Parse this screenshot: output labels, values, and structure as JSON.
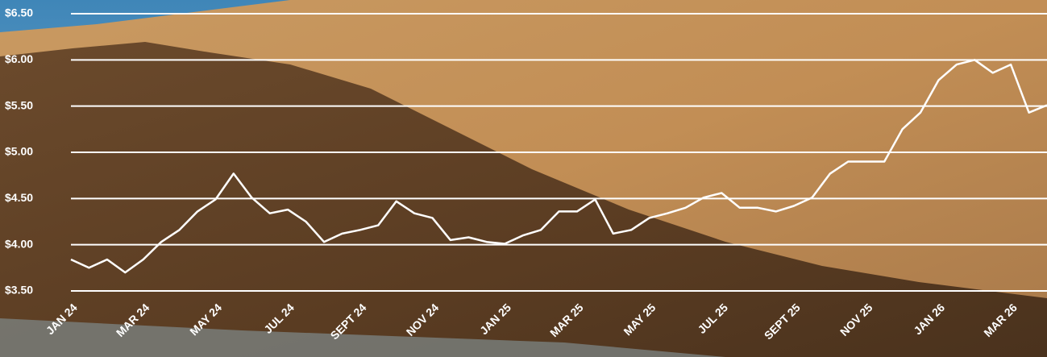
{
  "chart_data": {
    "type": "line",
    "categories": [
      "JAN 24",
      null,
      null,
      null,
      "MAR 24",
      null,
      null,
      null,
      "MAY 24",
      null,
      null,
      null,
      "JUL 24",
      null,
      null,
      null,
      "SEPT 24",
      null,
      null,
      null,
      "NOV 24",
      null,
      null,
      null,
      "JAN 25",
      null,
      null,
      null,
      "MAR 25",
      null,
      null,
      null,
      "MAY 25",
      null,
      null,
      null,
      "JUL 25",
      null,
      null,
      null,
      "SEPT 25",
      null,
      null,
      null,
      "NOV 25",
      null,
      null,
      null,
      "JAN 26",
      null,
      null,
      null,
      "MAR 26",
      null,
      null
    ],
    "values": [
      3.84,
      3.75,
      3.84,
      3.7,
      3.84,
      4.03,
      4.16,
      4.36,
      4.49,
      4.77,
      4.51,
      4.34,
      4.38,
      4.25,
      4.03,
      4.12,
      4.16,
      4.21,
      4.47,
      4.34,
      4.29,
      4.05,
      4.08,
      4.03,
      4.01,
      4.1,
      4.16,
      4.36,
      4.36,
      4.49,
      4.12,
      4.16,
      4.29,
      4.34,
      4.4,
      4.51,
      4.56,
      4.4,
      4.4,
      4.36,
      4.42,
      4.51,
      4.77,
      4.9,
      4.9,
      4.9,
      5.25,
      5.43,
      5.78,
      5.95,
      6.0,
      5.86,
      5.95,
      5.43,
      5.51
    ],
    "color": "#ffffff",
    "ylim": [
      3.5,
      6.5
    ],
    "yticks": [
      {
        "value": 3.5,
        "label": "$3.50"
      },
      {
        "value": 4.0,
        "label": "$4.00"
      },
      {
        "value": 4.5,
        "label": "$4.50"
      },
      {
        "value": 5.0,
        "label": "$5.00"
      },
      {
        "value": 5.5,
        "label": "$5.50"
      },
      {
        "value": 6.0,
        "label": "$6.00"
      },
      {
        "value": 6.5,
        "label": "$6.50"
      }
    ],
    "grid": true
  }
}
